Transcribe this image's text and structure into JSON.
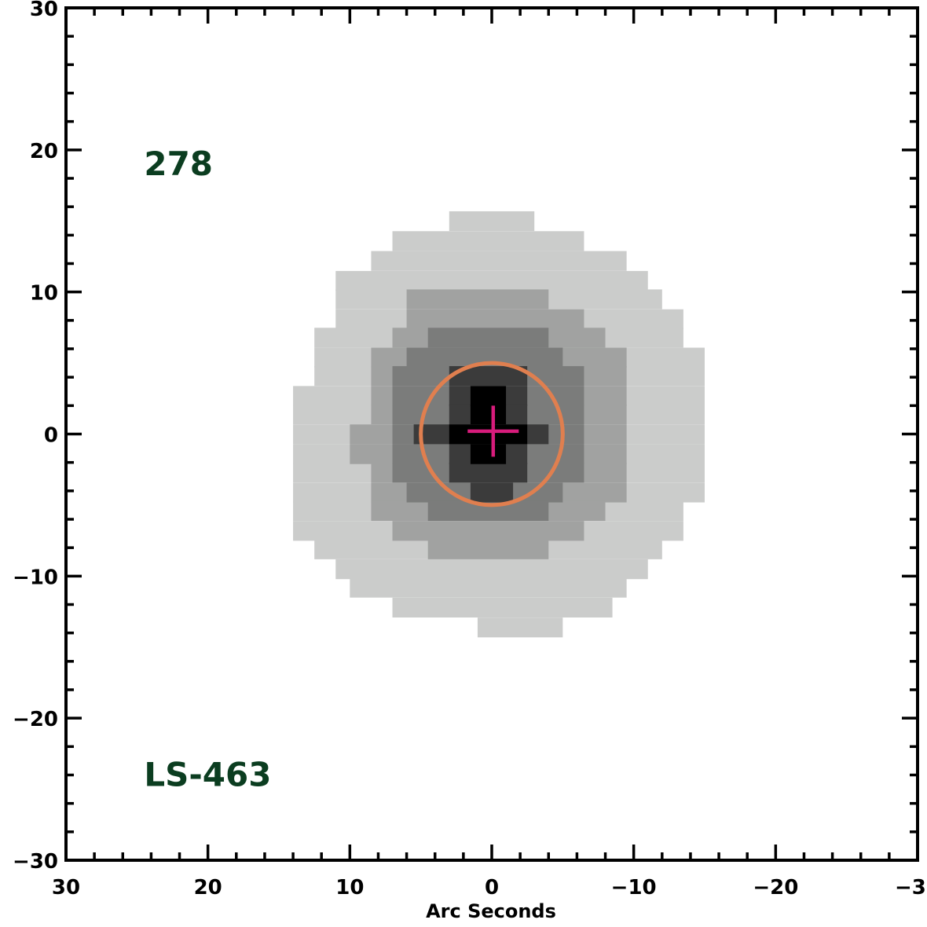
{
  "chart_data": {
    "type": "heatmap",
    "title": "",
    "xlabel": "Arc Seconds",
    "ylabel": "",
    "xlim": [
      30,
      -30
    ],
    "ylim": [
      -30,
      30
    ],
    "x_ticks": [
      30,
      20,
      10,
      0,
      -10,
      -20,
      -30
    ],
    "y_ticks": [
      30,
      20,
      10,
      0,
      -10,
      -20,
      -30
    ],
    "x_tick_labels": [
      "30",
      "20",
      "10",
      "0",
      "−10",
      "−20",
      "−30"
    ],
    "y_tick_labels": [
      "30",
      "20",
      "10",
      "0",
      "−10",
      "−20",
      "−30"
    ],
    "grid": false,
    "cell_size_arcsec": 1.36,
    "contour_levels": [
      {
        "level": 1,
        "color": "#cbcccb",
        "rows": [
          {
            "y": 15,
            "x": [
              3,
              -3
            ]
          },
          {
            "y": 13.6,
            "x": [
              7,
              -6.5
            ]
          },
          {
            "y": 12.2,
            "x": [
              8.5,
              -9.5
            ]
          },
          {
            "y": 10.8,
            "x": [
              11,
              -11
            ]
          },
          {
            "y": 9.5,
            "x": [
              11,
              -12
            ]
          },
          {
            "y": 8.1,
            "x": [
              11,
              -13.5
            ]
          },
          {
            "y": 6.8,
            "x": [
              12.5,
              -13.5
            ]
          },
          {
            "y": 5.4,
            "x": [
              12.5,
              -15
            ]
          },
          {
            "y": 4.1,
            "x": [
              12.5,
              -15
            ]
          },
          {
            "y": 2.7,
            "x": [
              14,
              -15
            ]
          },
          {
            "y": 1.4,
            "x": [
              14,
              -15
            ]
          },
          {
            "y": 0,
            "x": [
              14,
              -15
            ]
          },
          {
            "y": -1.4,
            "x": [
              14,
              -15
            ]
          },
          {
            "y": -2.7,
            "x": [
              14,
              -15
            ]
          },
          {
            "y": -4.1,
            "x": [
              14,
              -15
            ]
          },
          {
            "y": -5.4,
            "x": [
              14,
              -13.5
            ]
          },
          {
            "y": -6.8,
            "x": [
              14,
              -13.5
            ]
          },
          {
            "y": -8.1,
            "x": [
              12.5,
              -12
            ]
          },
          {
            "y": -9.5,
            "x": [
              11,
              -11
            ]
          },
          {
            "y": -10.8,
            "x": [
              10,
              -9.5
            ]
          },
          {
            "y": -12.2,
            "x": [
              7,
              -8.5
            ]
          },
          {
            "y": -13.6,
            "x": [
              1,
              -5
            ]
          }
        ]
      },
      {
        "level": 2,
        "color": "#a1a2a1",
        "rows": [
          {
            "y": 9.5,
            "x": [
              6,
              -4
            ]
          },
          {
            "y": 8.1,
            "x": [
              6,
              -6.5
            ]
          },
          {
            "y": 6.8,
            "x": [
              7,
              -8
            ]
          },
          {
            "y": 5.4,
            "x": [
              8.5,
              -9.5
            ]
          },
          {
            "y": 4.1,
            "x": [
              8.5,
              -9.5
            ]
          },
          {
            "y": 2.7,
            "x": [
              8.5,
              -9.5
            ]
          },
          {
            "y": 1.4,
            "x": [
              8.5,
              -9.5
            ]
          },
          {
            "y": 0,
            "x": [
              10,
              -9.5
            ]
          },
          {
            "y": -1.4,
            "x": [
              10,
              -9.5
            ]
          },
          {
            "y": -2.7,
            "x": [
              8.5,
              -9.5
            ]
          },
          {
            "y": -4.1,
            "x": [
              8.5,
              -9.5
            ]
          },
          {
            "y": -5.4,
            "x": [
              8.5,
              -8
            ]
          },
          {
            "y": -6.8,
            "x": [
              7,
              -6.5
            ]
          },
          {
            "y": -8.1,
            "x": [
              4.5,
              -4
            ]
          }
        ]
      },
      {
        "level": 3,
        "color": "#7b7c7b",
        "rows": [
          {
            "y": 6.8,
            "x": [
              4.5,
              -4
            ]
          },
          {
            "y": 5.4,
            "x": [
              6,
              -5
            ]
          },
          {
            "y": 4.1,
            "x": [
              7,
              -6.5
            ]
          },
          {
            "y": 2.7,
            "x": [
              7,
              -6.5
            ]
          },
          {
            "y": 1.4,
            "x": [
              7,
              -6.5
            ]
          },
          {
            "y": 0,
            "x": [
              7,
              -6.5
            ]
          },
          {
            "y": -1.4,
            "x": [
              7,
              -6.5
            ]
          },
          {
            "y": -2.7,
            "x": [
              7,
              -6.5
            ]
          },
          {
            "y": -4.1,
            "x": [
              6,
              -5
            ]
          },
          {
            "y": -5.4,
            "x": [
              4.5,
              -4
            ]
          }
        ]
      },
      {
        "level": 4,
        "color": "#3b3b3b",
        "rows": [
          {
            "y": 4.1,
            "x": [
              3,
              -2.5
            ]
          },
          {
            "y": 2.7,
            "x": [
              3,
              -2.5
            ]
          },
          {
            "y": 1.4,
            "x": [
              3,
              -2.5
            ]
          },
          {
            "y": 0,
            "x": [
              5.5,
              -4
            ]
          },
          {
            "y": -1.4,
            "x": [
              3,
              -2.5
            ]
          },
          {
            "y": -2.7,
            "x": [
              3,
              -2.5
            ]
          },
          {
            "y": -4.1,
            "x": [
              1.5,
              -1.5
            ]
          }
        ]
      },
      {
        "level": 5,
        "color": "#000000",
        "rows": [
          {
            "y": 2.7,
            "x": [
              1.5,
              -1
            ]
          },
          {
            "y": 1.4,
            "x": [
              1.5,
              -1
            ]
          },
          {
            "y": 0,
            "x": [
              3,
              -2.5
            ]
          },
          {
            "y": -1.4,
            "x": [
              1.5,
              -1
            ]
          }
        ]
      }
    ],
    "aperture_circle": {
      "center": [
        0,
        0
      ],
      "radius": 5,
      "color": "#e07f4f"
    },
    "centroid_marker": {
      "x": -0.1,
      "y": 0.2,
      "color": "#d81c7c"
    },
    "annotations": [
      {
        "text": "278",
        "x": 24.5,
        "y": 19,
        "color": "#0b3d20"
      },
      {
        "text": "LS-463",
        "x": 24.5,
        "y": -24,
        "color": "#0b3d20"
      }
    ]
  }
}
